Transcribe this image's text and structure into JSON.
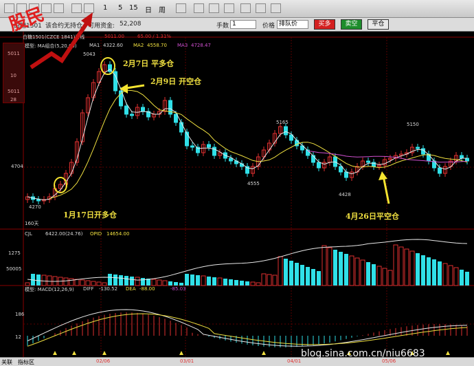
{
  "toolbar": {
    "items": [
      "1",
      "5",
      "15",
      "日",
      "周"
    ]
  },
  "order_bar": {
    "instrument": "白糖1501",
    "position_text": "该合约无持仓",
    "funds_label": "可用资金:",
    "funds_value": "52,208",
    "qty_label": "手数",
    "qty_value": "1",
    "price_label": "价格",
    "price_value": "排队价",
    "buy_label": "买多",
    "sell_label": "卖空",
    "close_label": "平仓"
  },
  "price_panel": {
    "symbol": "白糖1501(CZCE 1841)日线",
    "last": "5011.00",
    "change": "65.00 / 1.31%",
    "model_label": "模型: MA组合(5,20,60)",
    "ma1_label": "MA1",
    "ma1_value": "4322.60",
    "ma2_label": "MA2",
    "ma2_value": "4558.70",
    "ma3_label": "MA3",
    "ma3_value": "4728.47",
    "left_prices": [
      "5011",
      "10",
      "5011",
      "28"
    ],
    "axis_price": "4704",
    "period": "160天",
    "annotations": [
      "5011",
      "5043",
      "5165",
      "5150",
      "4555",
      "4428",
      "4270"
    ]
  },
  "volume_panel": {
    "cjl_label": "CJL",
    "cjl_value": "6422.00(24.76)",
    "opid_label": "OPID",
    "opid_value": "14654.00",
    "axis_labels": [
      "1275",
      "50005"
    ]
  },
  "macd_panel": {
    "model_label": "模型: MACD(12,26,9)",
    "diff_label": "DIFF",
    "diff_value": "-130.52",
    "dea_label": "DEA",
    "dea_value": "-88.00",
    "macd_value": "-85.03",
    "axis_labels": [
      "186",
      "12"
    ]
  },
  "trade_annotations": {
    "feb7": "2月7日 平多仓",
    "feb9": "2月9日 开空仓",
    "jan17": "1月17日开多仓",
    "apr26": "4月26日平空仓"
  },
  "date_axis": [
    "02/06",
    "03/01",
    "04/01",
    "05/06"
  ],
  "bottom_bar": {
    "tab1": "关联",
    "tab2": "指标区"
  },
  "watermark": "blog.sina.com.cn/niu6683",
  "logo_text": "股民",
  "chart_data": {
    "type": "candlestick",
    "series": [
      {
        "type": "candles",
        "values_ohlc": [
          [
            4300,
            4330,
            4270,
            4290
          ],
          [
            4290,
            4320,
            4270,
            4300
          ],
          [
            4300,
            4320,
            4280,
            4305
          ],
          [
            4305,
            4330,
            4290,
            4300
          ],
          [
            4300,
            4420,
            4290,
            4405
          ],
          [
            4405,
            4500,
            4380,
            4480
          ],
          [
            4480,
            4620,
            4460,
            4600
          ],
          [
            4600,
            4760,
            4580,
            4740
          ],
          [
            4740,
            4860,
            4720,
            4840
          ],
          [
            4840,
            4960,
            4820,
            4920
          ],
          [
            4920,
            5020,
            4900,
            5000
          ],
          [
            5000,
            5043,
            4960,
            5030
          ],
          [
            5030,
            5165,
            5000,
            5150
          ],
          [
            5150,
            5160,
            5010,
            5030
          ],
          [
            5030,
            5050,
            4900,
            4920
          ],
          [
            4920,
            4960,
            4870,
            4890
          ],
          [
            4890,
            4910,
            4820,
            4850
          ],
          [
            4850,
            4890,
            4800,
            4860
          ],
          [
            4860,
            4940,
            4840,
            4920
          ],
          [
            4920,
            4980,
            4880,
            4900
          ]
        ]
      }
    ],
    "highs": [
      5043,
      5165,
      5150
    ],
    "lows": [
      4270,
      4555,
      4428
    ],
    "y_axis_label": "4704"
  }
}
